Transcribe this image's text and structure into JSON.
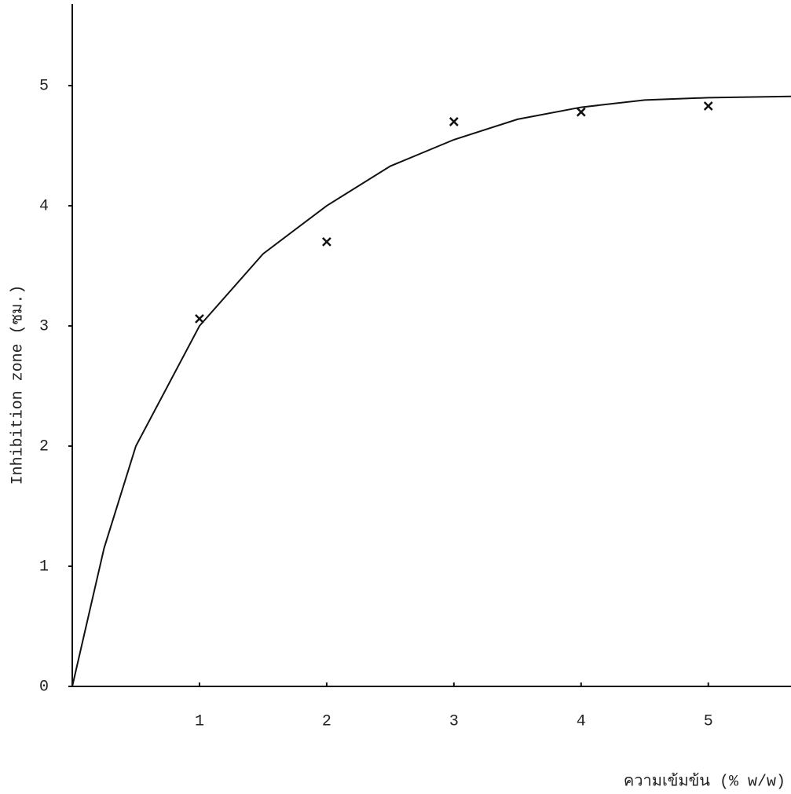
{
  "chart_data": {
    "type": "scatter",
    "xlabel": "ความเข้มข้น (% w/w)",
    "ylabel": "Inhibition zone (ซม.)",
    "xlim": [
      0,
      5.65
    ],
    "ylim": [
      0,
      5.68
    ],
    "xticks": [
      1,
      2,
      3,
      4,
      5
    ],
    "yticks": [
      0,
      1,
      2,
      3,
      4,
      5
    ],
    "series": [
      {
        "type": "scatter",
        "color": "#111111",
        "x": [
          1,
          2,
          3,
          4,
          5
        ],
        "values": [
          3.06,
          3.7,
          4.7,
          4.78,
          4.83
        ]
      },
      {
        "type": "line",
        "color": "#111111",
        "x": [
          0,
          0.25,
          0.5,
          1,
          1.5,
          2,
          2.5,
          3,
          3.5,
          4,
          4.5,
          5,
          5.65
        ],
        "values": [
          0,
          1.15,
          2.0,
          3.0,
          3.6,
          4.0,
          4.33,
          4.55,
          4.72,
          4.82,
          4.88,
          4.9,
          4.91
        ]
      }
    ]
  }
}
